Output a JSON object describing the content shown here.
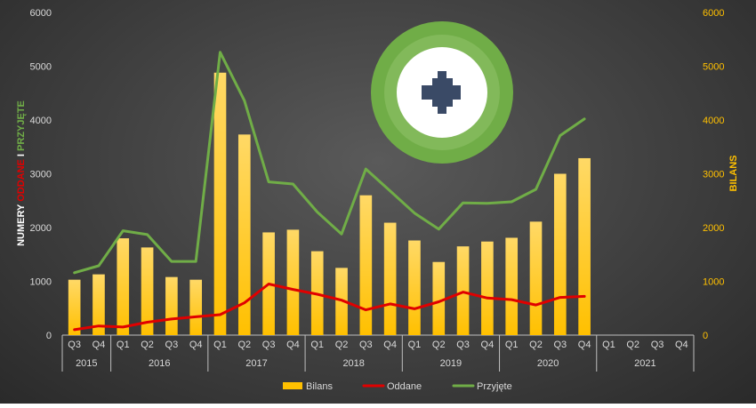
{
  "chart_data": {
    "type": "bar",
    "categories": [
      "Q3",
      "Q4",
      "Q1",
      "Q2",
      "Q3",
      "Q4",
      "Q1",
      "Q2",
      "Q3",
      "Q4",
      "Q1",
      "Q2",
      "Q3",
      "Q4",
      "Q1",
      "Q2",
      "Q3",
      "Q4",
      "Q1",
      "Q2",
      "Q3",
      "Q4",
      "Q1",
      "Q2",
      "Q3",
      "Q4"
    ],
    "years": [
      {
        "label": "2015",
        "start": 0,
        "end": 1
      },
      {
        "label": "2016",
        "start": 2,
        "end": 5
      },
      {
        "label": "2017",
        "start": 6,
        "end": 9
      },
      {
        "label": "2018",
        "start": 10,
        "end": 13
      },
      {
        "label": "2019",
        "start": 14,
        "end": 17
      },
      {
        "label": "2020",
        "start": 18,
        "end": 21
      },
      {
        "label": "2021",
        "start": 22,
        "end": 25
      }
    ],
    "series": [
      {
        "name": "Bilans",
        "type": "bar",
        "axis": "right",
        "color": "#ffc000",
        "values": [
          1030,
          1130,
          1800,
          1630,
          1080,
          1030,
          4880,
          3730,
          1910,
          1960,
          1560,
          1250,
          2600,
          2090,
          1760,
          1360,
          1650,
          1740,
          1810,
          2110,
          3000,
          3290,
          null,
          null,
          null,
          null
        ]
      },
      {
        "name": "Oddane",
        "type": "line",
        "axis": "left",
        "color": "#e00000",
        "values": [
          100,
          170,
          150,
          240,
          300,
          340,
          380,
          600,
          950,
          850,
          760,
          650,
          470,
          580,
          490,
          620,
          800,
          690,
          660,
          560,
          700,
          720,
          null,
          null,
          null,
          null
        ]
      },
      {
        "name": "Przyjęte",
        "type": "line",
        "axis": "left",
        "color": "#70ad47",
        "values": [
          1160,
          1290,
          1940,
          1870,
          1370,
          1370,
          5260,
          4360,
          2850,
          2810,
          2290,
          1880,
          3090,
          2680,
          2270,
          1970,
          2460,
          2450,
          2480,
          2710,
          3710,
          4020,
          null,
          null,
          null,
          null
        ]
      }
    ],
    "yaxis_left": {
      "min": 0,
      "max": 6000,
      "ticks": [
        0,
        1000,
        2000,
        3000,
        4000,
        5000,
        6000
      ]
    },
    "yaxis_right": {
      "min": 0,
      "max": 6000,
      "ticks": [
        0,
        1000,
        2000,
        3000,
        4000,
        5000,
        6000
      ],
      "label": "BILANS"
    },
    "ylabel_left_parts": [
      {
        "text": "NUMERY ",
        "color": "#ffffff"
      },
      {
        "text": "ODDANE",
        "color": "#e00000"
      },
      {
        "text": " I ",
        "color": "#ffffff"
      },
      {
        "text": "PRZYJĘTE",
        "color": "#70ad47"
      }
    ],
    "legend_position": "bottom",
    "grid": false
  },
  "logo": {
    "icon": "arrow-right-icon",
    "ring_color": "#70ad47",
    "arrow_color": "#3a4a66"
  }
}
